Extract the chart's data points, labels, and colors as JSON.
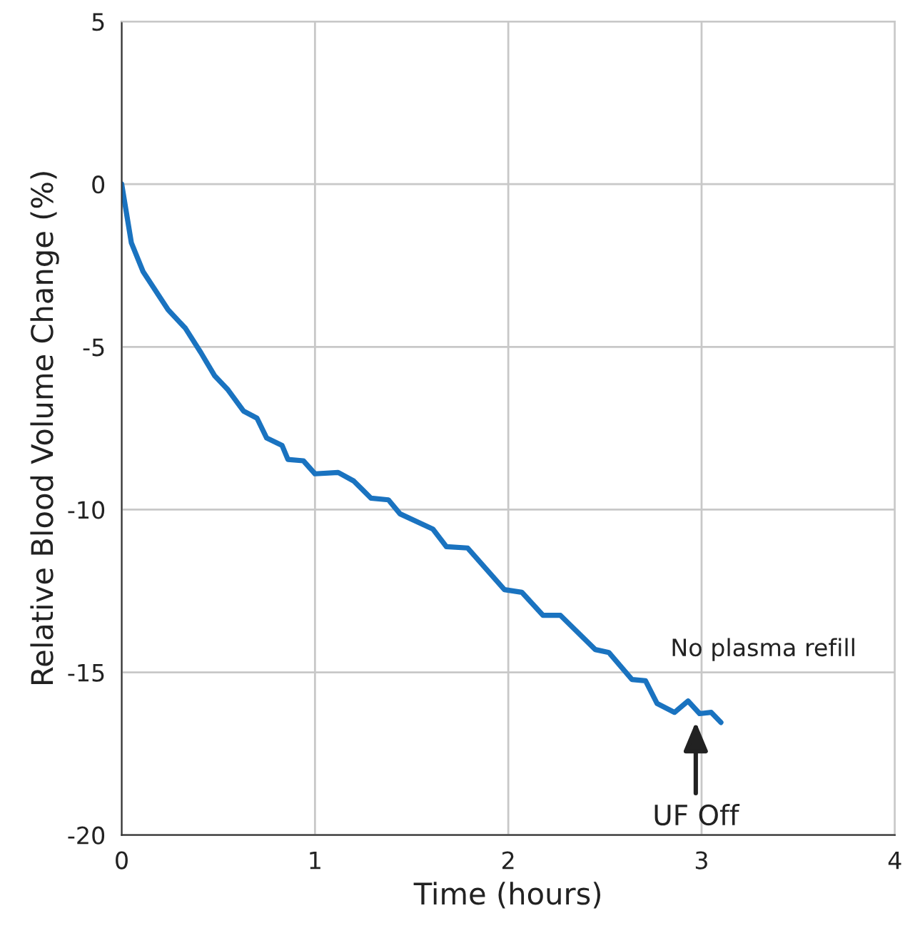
{
  "chart_data": {
    "type": "line",
    "xlabel": "Time (hours)",
    "ylabel": "Relative Blood Volume Change (%)",
    "xlim": [
      0,
      4
    ],
    "xticks": [
      0,
      1,
      2,
      3,
      4
    ],
    "ylim": [
      -20,
      5
    ],
    "yticks": [
      -20,
      -15,
      -10,
      -5,
      0,
      5
    ],
    "grid": true,
    "marker": "none",
    "line_style": "solid",
    "series": [
      {
        "color": "#1a73c0",
        "x": [
          0,
          0.05,
          0.11,
          0.24,
          0.33,
          0.41,
          0.48,
          0.55,
          0.63,
          0.7,
          0.75,
          0.83,
          0.86,
          0.94,
          1.0,
          1.12,
          1.2,
          1.29,
          1.38,
          1.44,
          1.61,
          1.68,
          1.79,
          1.98,
          2.07,
          2.18,
          2.27,
          2.45,
          2.52,
          2.64,
          2.71,
          2.77,
          2.86,
          2.93,
          2.99,
          3.05,
          3.1
        ],
        "values": [
          0,
          -1.8,
          -2.68,
          -3.86,
          -4.43,
          -5.18,
          -5.88,
          -6.32,
          -6.97,
          -7.19,
          -7.8,
          -8.03,
          -8.46,
          -8.5,
          -8.9,
          -8.86,
          -9.12,
          -9.65,
          -9.7,
          -10.13,
          -10.6,
          -11.14,
          -11.18,
          -12.46,
          -12.54,
          -13.25,
          -13.25,
          -14.3,
          -14.39,
          -15.22,
          -15.26,
          -15.96,
          -16.23,
          -15.88,
          -16.27,
          -16.23,
          -16.54
        ]
      }
    ],
    "annotations": [
      "No plasma refill",
      {
        "text": "UF Off",
        "x": 2.97,
        "y": -16.4
      }
    ]
  }
}
